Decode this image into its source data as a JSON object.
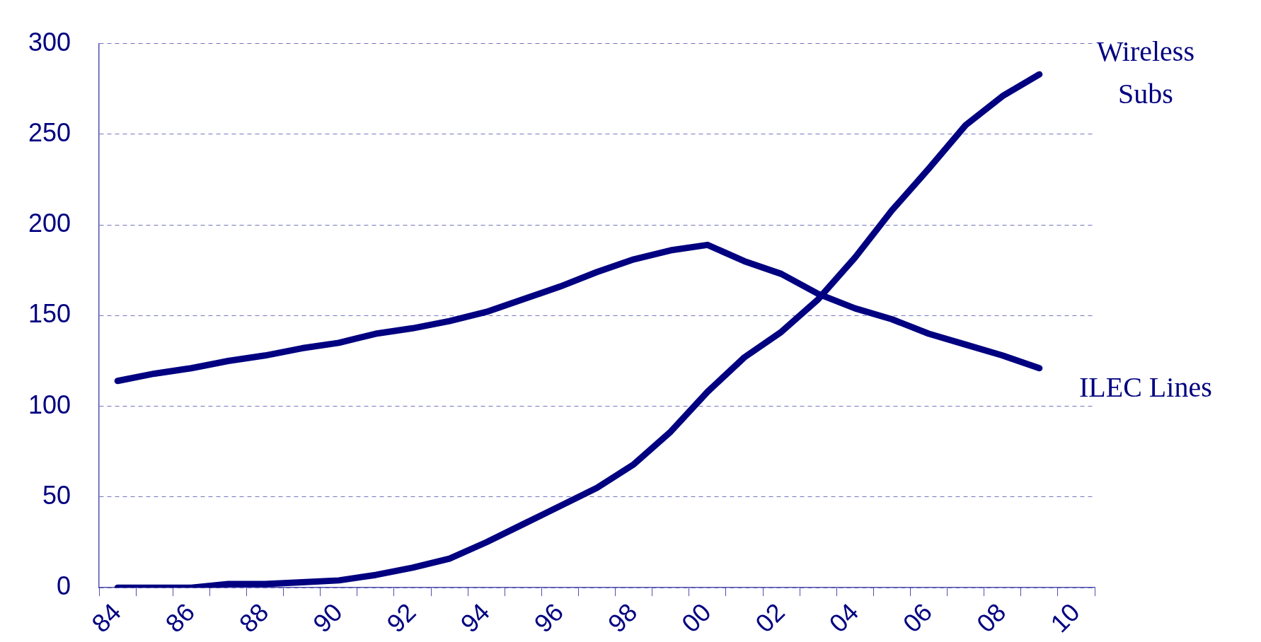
{
  "chart_data": {
    "type": "line",
    "categories": [
      "84",
      null,
      "86",
      null,
      "88",
      null,
      "90",
      null,
      "92",
      null,
      "94",
      null,
      "96",
      null,
      "98",
      null,
      "00",
      null,
      "02",
      null,
      "04",
      null,
      "06",
      null,
      "08",
      null,
      "10"
    ],
    "series": [
      {
        "name": "Wireless Subs",
        "color": "#000080",
        "values": [
          0,
          0,
          0,
          2,
          2,
          3,
          4,
          7,
          11,
          16,
          25,
          35,
          45,
          55,
          68,
          86,
          108,
          127,
          141,
          159,
          182,
          208,
          231,
          255,
          271,
          283,
          null
        ]
      },
      {
        "name": "ILEC Lines",
        "color": "#000080",
        "values": [
          114,
          118,
          121,
          125,
          128,
          132,
          135,
          140,
          143,
          147,
          152,
          159,
          166,
          174,
          181,
          186,
          189,
          180,
          173,
          162,
          154,
          148,
          140,
          134,
          128,
          121,
          null
        ]
      }
    ],
    "ylim": [
      0,
      300
    ],
    "yticks": [
      0,
      50,
      100,
      150,
      200,
      250,
      300
    ],
    "grid": "y",
    "legend": false,
    "marker": "none",
    "line_style": "solid"
  }
}
